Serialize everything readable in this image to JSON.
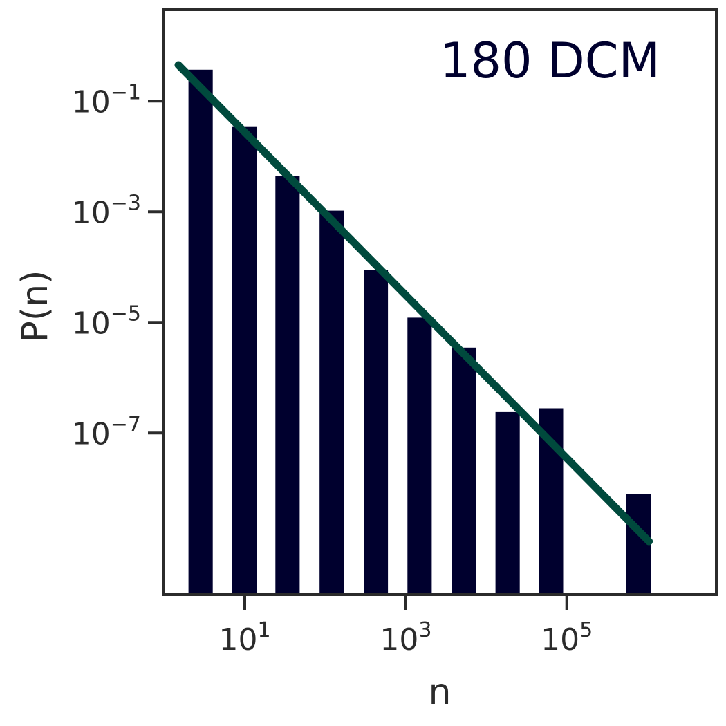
{
  "chart_data": {
    "type": "bar",
    "annotation": "180 DCM",
    "xlabel": "n",
    "ylabel": "P(n)",
    "x_scale": "log",
    "y_scale": "log",
    "xlim": [
      0.97,
      7200000
    ],
    "ylim": [
      1.2e-10,
      4.5
    ],
    "x_ticks": [
      {
        "value": 10,
        "base": "10",
        "exp": "1"
      },
      {
        "value": 1000,
        "base": "10",
        "exp": "3"
      },
      {
        "value": 100000,
        "base": "10",
        "exp": "5"
      }
    ],
    "y_ticks": [
      {
        "value": 0.1,
        "base": "10",
        "exp": "−1"
      },
      {
        "value": 0.001,
        "base": "10",
        "exp": "−3"
      },
      {
        "value": 1e-05,
        "base": "10",
        "exp": "−5"
      },
      {
        "value": 1e-07,
        "base": "10",
        "exp": "−7"
      }
    ],
    "bars": [
      {
        "x0": 2.0,
        "x1": 4.0,
        "y": 0.37
      },
      {
        "x0": 7.0,
        "x1": 14.0,
        "y": 0.035
      },
      {
        "x0": 24.0,
        "x1": 48.0,
        "y": 0.0045
      },
      {
        "x0": 85.0,
        "x1": 170.0,
        "y": 0.00105
      },
      {
        "x0": 300.0,
        "x1": 600.0,
        "y": 8.8e-05
      },
      {
        "x0": 1050.0,
        "x1": 2100.0,
        "y": 1.22e-05
      },
      {
        "x0": 3700.0,
        "x1": 7400.0,
        "y": 3.5e-06
      },
      {
        "x0": 13000.0,
        "x1": 26000.0,
        "y": 2.4e-07
      },
      {
        "x0": 45000.0,
        "x1": 90000.0,
        "y": 2.8e-07
      },
      {
        "x0": 550000.0,
        "x1": 1100000.0,
        "y": 8e-09
      }
    ],
    "fit_line": {
      "x": [
        1.5,
        1050000
      ],
      "y": [
        0.45,
        1.1e-09
      ]
    },
    "colors": {
      "bars": "#00002e",
      "fit_line": "#004a3d",
      "axes": "#2b2b2b",
      "annotation": "#00002e"
    },
    "grid": false,
    "legend": "none"
  }
}
